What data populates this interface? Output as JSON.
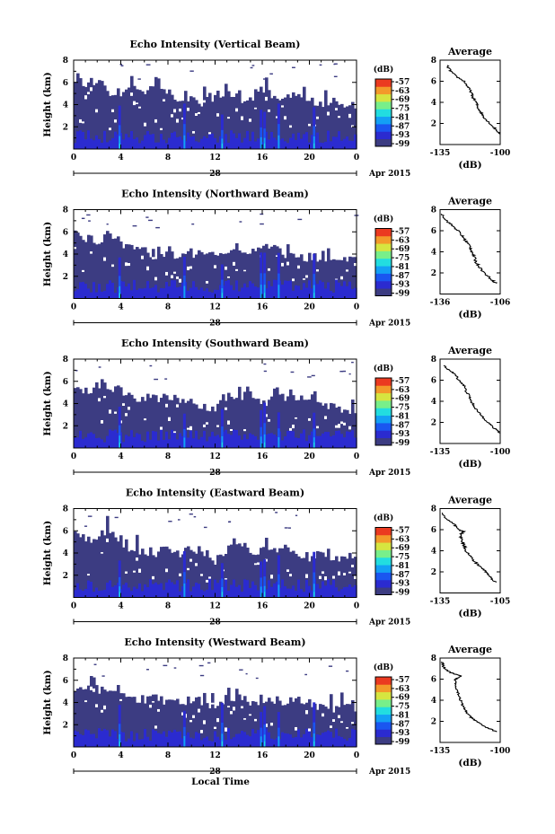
{
  "chart_data": [
    {
      "type": "heatmap",
      "title": "Echo Intensity (Vertical Beam)",
      "ylabel": "Height (km)",
      "xlabel": "",
      "x_tick_labels": [
        "0",
        "4",
        "8",
        "12",
        "16",
        "20",
        "0"
      ],
      "date_label": "28",
      "date_suffix": "Apr 2015",
      "xlim": [
        0,
        24
      ],
      "ylim": [
        0,
        8
      ],
      "y_ticks": [
        2,
        4,
        6,
        8
      ],
      "colorbar": {
        "label": "(dB)",
        "ticks": [
          -57,
          -63,
          -69,
          -75,
          -81,
          -87,
          -93,
          -99
        ]
      },
      "echo_top_km": [
        6.4,
        5.8,
        6.3,
        5.1,
        5.0,
        5.6,
        4.6,
        6.1,
        5.2,
        4.1,
        4.4,
        4.0,
        4.9,
        5.2,
        4.5,
        4.4,
        5.6,
        4.8,
        4.8,
        4.6,
        4.4,
        4.2,
        4.2,
        4.1,
        4.1
      ],
      "average": {
        "title": "Average",
        "xlabel": "(dB)",
        "x_tick_labels": [
          "-135",
          "-100"
        ],
        "xlim": [
          -135,
          -100
        ],
        "ylim": [
          0,
          8
        ],
        "y_ticks": [
          2,
          4,
          6,
          8
        ],
        "height_km": [
          7.5,
          7.0,
          6.5,
          6.0,
          5.5,
          5.0,
          4.5,
          4.0,
          3.5,
          3.0,
          2.5,
          2.0,
          1.5,
          1.0
        ],
        "value_db": [
          -131,
          -129,
          -126,
          -121,
          -119,
          -117,
          -116,
          -114,
          -113,
          -111,
          -109,
          -106,
          -103,
          -100
        ]
      }
    },
    {
      "type": "heatmap",
      "title": "Echo Intensity (Northward Beam)",
      "ylabel": "Height (km)",
      "xlabel": "",
      "x_tick_labels": [
        "0",
        "4",
        "8",
        "12",
        "16",
        "20",
        "0"
      ],
      "date_label": "28",
      "date_suffix": "Apr 2015",
      "xlim": [
        0,
        24
      ],
      "ylim": [
        0,
        8
      ],
      "y_ticks": [
        2,
        4,
        6,
        8
      ],
      "colorbar": {
        "label": "(dB)",
        "ticks": [
          -57,
          -63,
          -69,
          -75,
          -81,
          -87,
          -93,
          -99
        ]
      },
      "echo_top_km": [
        5.8,
        5.5,
        5.2,
        5.6,
        4.8,
        4.7,
        4.3,
        3.9,
        4.3,
        3.8,
        4.1,
        4.1,
        3.7,
        4.3,
        4.8,
        3.9,
        4.9,
        4.7,
        3.7,
        3.6,
        3.8,
        3.6,
        3.4,
        3.4,
        3.5
      ],
      "average": {
        "title": "Average",
        "xlabel": "(dB)",
        "x_tick_labels": [
          "-136",
          "-106"
        ],
        "xlim": [
          -136,
          -106
        ],
        "ylim": [
          0,
          8
        ],
        "y_ticks": [
          2,
          4,
          6,
          8
        ],
        "height_km": [
          7.6,
          7.0,
          6.5,
          6.0,
          5.5,
          5.0,
          4.5,
          4.0,
          3.5,
          3.0,
          2.5,
          2.0,
          1.5,
          1.0
        ],
        "value_db": [
          -135,
          -133,
          -130,
          -127,
          -125,
          -123,
          -121,
          -120,
          -119,
          -118,
          -116,
          -114,
          -111,
          -108
        ]
      }
    },
    {
      "type": "heatmap",
      "title": "Echo Intensity (Southward Beam)",
      "ylabel": "Height (km)",
      "xlabel": "",
      "x_tick_labels": [
        "0",
        "4",
        "8",
        "12",
        "16",
        "20",
        "0"
      ],
      "date_label": "28",
      "date_suffix": "Apr 2015",
      "xlim": [
        0,
        24
      ],
      "ylim": [
        0,
        8
      ],
      "y_ticks": [
        2,
        4,
        6,
        8
      ],
      "colorbar": {
        "label": "(dB)",
        "ticks": [
          -57,
          -63,
          -69,
          -75,
          -81,
          -87,
          -93,
          -99
        ]
      },
      "echo_top_km": [
        5.8,
        5.0,
        5.7,
        5.6,
        4.6,
        4.7,
        4.4,
        4.6,
        4.4,
        4.5,
        4.3,
        3.8,
        3.5,
        4.4,
        4.7,
        4.8,
        4.0,
        4.6,
        4.5,
        4.5,
        4.6,
        3.9,
        3.6,
        3.4,
        3.4
      ],
      "average": {
        "title": "Average",
        "xlabel": "(dB)",
        "x_tick_labels": [
          "-135",
          "-100"
        ],
        "xlim": [
          -135,
          -100
        ],
        "ylim": [
          0,
          8
        ],
        "y_ticks": [
          2,
          4,
          6,
          8
        ],
        "height_km": [
          7.4,
          7.0,
          6.5,
          6.0,
          5.5,
          5.0,
          4.5,
          4.0,
          3.5,
          3.0,
          2.5,
          2.0,
          1.5,
          1.0
        ],
        "value_db": [
          -133,
          -130,
          -126,
          -124,
          -121,
          -120,
          -118,
          -117,
          -115,
          -113,
          -110,
          -107,
          -104,
          -100
        ]
      }
    },
    {
      "type": "heatmap",
      "title": "Echo Intensity (Eastward Beam)",
      "ylabel": "Height (km)",
      "xlabel": "",
      "x_tick_labels": [
        "0",
        "4",
        "8",
        "12",
        "16",
        "20",
        "0"
      ],
      "date_label": "28",
      "date_suffix": "Apr 2015",
      "xlim": [
        0,
        24
      ],
      "ylim": [
        0,
        8
      ],
      "y_ticks": [
        2,
        4,
        6,
        8
      ],
      "colorbar": {
        "label": "(dB)",
        "ticks": [
          -57,
          -63,
          -69,
          -75,
          -81,
          -87,
          -93,
          -99
        ]
      },
      "echo_top_km": [
        5.8,
        5.2,
        5.5,
        5.8,
        4.8,
        4.3,
        4.2,
        4.0,
        4.3,
        3.8,
        4.5,
        4.1,
        3.3,
        4.2,
        5.0,
        4.0,
        4.4,
        4.6,
        4.3,
        3.9,
        3.6,
        3.8,
        3.5,
        3.6,
        3.6
      ],
      "average": {
        "title": "Average",
        "xlabel": "(dB)",
        "x_tick_labels": [
          "-135",
          "-105"
        ],
        "xlim": [
          -135,
          -105
        ],
        "ylim": [
          0,
          8
        ],
        "y_ticks": [
          2,
          4,
          6,
          8
        ],
        "height_km": [
          7.6,
          7.0,
          6.5,
          6.0,
          5.8,
          5.5,
          5.0,
          4.5,
          4.0,
          3.5,
          3.0,
          2.5,
          2.0,
          1.5,
          1.0
        ],
        "value_db": [
          -134,
          -132,
          -128,
          -126,
          -123,
          -125,
          -124,
          -123,
          -122,
          -120,
          -118,
          -115,
          -112,
          -110,
          -107
        ]
      }
    },
    {
      "type": "heatmap",
      "title": "Echo Intensity (Westward Beam)",
      "ylabel": "Height (km)",
      "xlabel": "Local Time",
      "x_tick_labels": [
        "0",
        "4",
        "8",
        "12",
        "16",
        "20",
        "0"
      ],
      "date_label": "28",
      "date_suffix": "Apr 2015",
      "xlim": [
        0,
        24
      ],
      "ylim": [
        0,
        8
      ],
      "y_ticks": [
        2,
        4,
        6,
        8
      ],
      "colorbar": {
        "label": "(dB)",
        "ticks": [
          -57,
          -63,
          -69,
          -75,
          -81,
          -87,
          -93,
          -99
        ]
      },
      "echo_top_km": [
        5.4,
        5.6,
        5.2,
        5.5,
        4.6,
        4.4,
        4.2,
        4.3,
        4.1,
        4.2,
        4.2,
        3.9,
        3.7,
        4.4,
        4.5,
        3.9,
        4.3,
        4.1,
        4.2,
        4.3,
        3.7,
        3.8,
        3.5,
        3.5,
        3.6
      ],
      "average": {
        "title": "Average",
        "xlabel": "(dB)",
        "x_tick_labels": [
          "-135",
          "-100"
        ],
        "xlim": [
          -135,
          -100
        ],
        "ylim": [
          0,
          8
        ],
        "y_ticks": [
          2,
          4,
          6,
          8
        ],
        "height_km": [
          7.6,
          7.2,
          6.8,
          6.5,
          6.3,
          6.0,
          5.5,
          5.0,
          4.5,
          4.0,
          3.5,
          3.0,
          2.5,
          2.0,
          1.5,
          1.0
        ],
        "value_db": [
          -134,
          -133,
          -131,
          -127,
          -123,
          -126,
          -126,
          -125,
          -124,
          -123,
          -122,
          -120,
          -118,
          -114,
          -109,
          -102
        ]
      }
    }
  ],
  "colors": {
    "background": "#3c3c82",
    "colormap": [
      "#3c3c82",
      "#2b2bd0",
      "#1a56f0",
      "#13a0f5",
      "#22dde0",
      "#78ef8a",
      "#d6e540",
      "#f39a2a",
      "#eb3a20"
    ]
  }
}
